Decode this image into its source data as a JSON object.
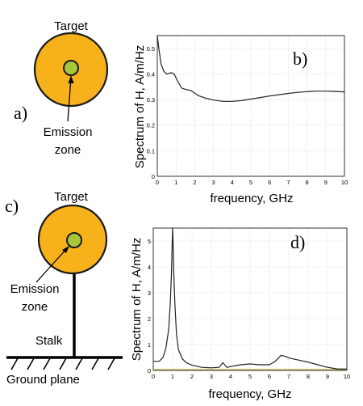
{
  "labels": {
    "target_top": "Target",
    "target_bottom": "Target",
    "emission_top_line1": "Emission",
    "emission_top_line2": "zone",
    "emission_bottom_line1": "Emission",
    "emission_bottom_line2": "zone",
    "stalk": "Stalk",
    "ground_plane": "Ground plane",
    "panel_a": "a)",
    "panel_b": "b)",
    "panel_c": "c)",
    "panel_d": "d)"
  },
  "colors": {
    "target_fill": "#F7B21B",
    "emission_fill": "#A8C63A",
    "zero_line_d": "#B8AE3A"
  },
  "chart_data": [
    {
      "id": "b",
      "type": "line",
      "xlabel": "frequency, GHz",
      "ylabel": "Spectrum of H, A/m/Hz",
      "xlim": [
        0,
        10
      ],
      "ylim": [
        0,
        0.55
      ],
      "xticks": [
        "0",
        "1",
        "2",
        "3",
        "4",
        "5",
        "6",
        "7",
        "8",
        "9",
        "10"
      ],
      "yticks": [
        "0",
        "0.1",
        "0.2",
        "0.3",
        "0.4",
        "0.5"
      ],
      "grid": true,
      "x": [
        0,
        0.08,
        0.2,
        0.35,
        0.5,
        0.75,
        0.9,
        1.1,
        1.3,
        1.5,
        1.8,
        2.2,
        2.6,
        3.0,
        3.5,
        4.0,
        4.5,
        5.0,
        5.5,
        6.0,
        6.5,
        7.0,
        7.5,
        8.0,
        8.5,
        9.0,
        9.5,
        10.0
      ],
      "y": [
        0.55,
        0.5,
        0.44,
        0.41,
        0.4,
        0.405,
        0.4,
        0.37,
        0.345,
        0.34,
        0.335,
        0.315,
        0.305,
        0.298,
        0.293,
        0.293,
        0.296,
        0.302,
        0.308,
        0.314,
        0.319,
        0.324,
        0.328,
        0.331,
        0.333,
        0.333,
        0.332,
        0.33
      ]
    },
    {
      "id": "d",
      "type": "line",
      "xlabel": "frequency, GHz",
      "ylabel": "Spectrum of H, A/m/Hz",
      "xlim": [
        0,
        10
      ],
      "ylim": [
        0,
        5.5
      ],
      "xticks": [
        "0",
        "1",
        "2",
        "3",
        "4",
        "5",
        "6",
        "7",
        "8",
        "9",
        "10"
      ],
      "yticks": [
        "0",
        "1",
        "2",
        "3",
        "4",
        "5"
      ],
      "grid": true,
      "x": [
        0,
        0.3,
        0.5,
        0.65,
        0.8,
        0.88,
        0.94,
        0.98,
        1.0,
        1.02,
        1.06,
        1.12,
        1.2,
        1.3,
        1.5,
        1.7,
        2.0,
        2.5,
        3.0,
        3.4,
        3.6,
        3.8,
        4.0,
        4.5,
        5.0,
        5.5,
        6.0,
        6.3,
        6.6,
        6.8,
        7.0,
        7.5,
        8.0,
        8.5,
        9.0,
        9.5,
        10.0
      ],
      "y": [
        0.35,
        0.35,
        0.5,
        0.85,
        1.6,
        2.6,
        3.8,
        5.0,
        5.5,
        5.0,
        3.8,
        2.5,
        1.4,
        0.8,
        0.45,
        0.3,
        0.2,
        0.12,
        0.1,
        0.12,
        0.3,
        0.12,
        0.15,
        0.22,
        0.25,
        0.22,
        0.22,
        0.35,
        0.58,
        0.55,
        0.48,
        0.4,
        0.32,
        0.22,
        0.12,
        0.06,
        0.05
      ]
    }
  ]
}
